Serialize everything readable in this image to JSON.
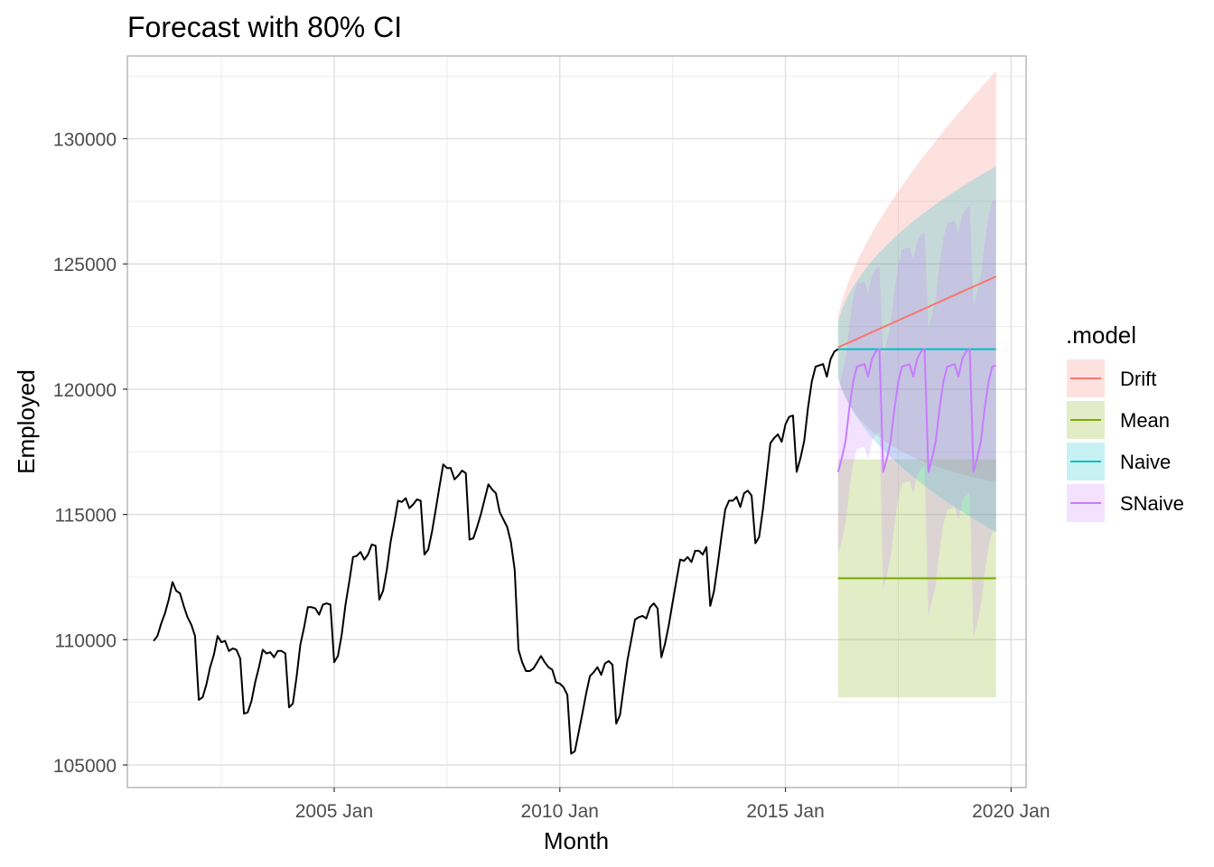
{
  "chart_data": {
    "type": "line",
    "title": "Forecast with 80% CI",
    "xlabel": "Month",
    "ylabel": "Employed",
    "xlim": [
      "2000-06",
      "2020-05"
    ],
    "ylim": [
      104100,
      133300
    ],
    "x_ticks": [
      "2005 Jan",
      "2010 Jan",
      "2015 Jan",
      "2020 Jan"
    ],
    "y_ticks": [
      "105000",
      "110000",
      "115000",
      "120000",
      "125000",
      "130000"
    ],
    "grid": true,
    "legend": {
      "title": ".model",
      "position": "right",
      "entries": [
        "Drift",
        "Mean",
        "Naive",
        "SNaive"
      ]
    },
    "colors": {
      "history": "#000000",
      "Drift": "#F8766D",
      "Mean": "#7CAE00",
      "Naive": "#00BFC4",
      "SNaive": "#C77CFF"
    },
    "history": {
      "start": "2001-01",
      "values": [
        109950,
        110150,
        110650,
        111050,
        111600,
        112300,
        111950,
        111850,
        111350,
        110900,
        110600,
        110150,
        107600,
        107700,
        108200,
        108900,
        109400,
        110150,
        109900,
        109950,
        109550,
        109650,
        109600,
        109250,
        107050,
        107100,
        107550,
        108300,
        108900,
        109600,
        109450,
        109500,
        109300,
        109550,
        109550,
        109450,
        107300,
        107450,
        108500,
        109800,
        110500,
        111300,
        111300,
        111250,
        111000,
        111400,
        111450,
        111400,
        109100,
        109350,
        110200,
        111400,
        112300,
        113300,
        113350,
        113500,
        113200,
        113400,
        113800,
        113750,
        111600,
        111950,
        112800,
        113900,
        114700,
        115550,
        115500,
        115650,
        115250,
        115400,
        115600,
        115550,
        113400,
        113600,
        114300,
        115200,
        116100,
        117000,
        116850,
        116850,
        116400,
        116550,
        116750,
        116650,
        114000,
        114050,
        114500,
        115000,
        115600,
        116200,
        116000,
        115850,
        115100,
        114800,
        114500,
        113900,
        112800,
        109600,
        109100,
        108750,
        108750,
        108850,
        109100,
        109350,
        109100,
        108900,
        108800,
        108300,
        108250,
        108100,
        107800,
        105450,
        105550,
        106300,
        107050,
        107850,
        108550,
        108700,
        108900,
        108600,
        109050,
        109150,
        109000,
        106650,
        107000,
        108100,
        109200,
        110000,
        110800,
        110900,
        110950,
        110850,
        111300,
        111450,
        111250,
        109300,
        109850,
        110600,
        111500,
        112350,
        113200,
        113150,
        113300,
        113100,
        113550,
        113550,
        113400,
        113700,
        111350,
        111950,
        113000,
        114150,
        115200,
        115550,
        115550,
        115700,
        115300,
        115850,
        115950,
        115750,
        113850,
        114100,
        115200,
        116500,
        117850,
        118050,
        118200,
        117900,
        118600,
        118900,
        118950,
        116700,
        117250,
        117950,
        119250,
        120300,
        120900,
        120950,
        121000,
        120500,
        121200,
        121500,
        121600
      ]
    },
    "forecast": {
      "start": "2016-03",
      "horizon": 43,
      "last_value": 121600,
      "drift_end": 124500,
      "mean": 112450,
      "mean_interval": [
        107700,
        117200
      ],
      "naive_interval_end": [
        114300,
        128900
      ],
      "drift_interval_end": [
        116300,
        132700
      ],
      "snaive_interval_halfwidth": 3300
    }
  }
}
